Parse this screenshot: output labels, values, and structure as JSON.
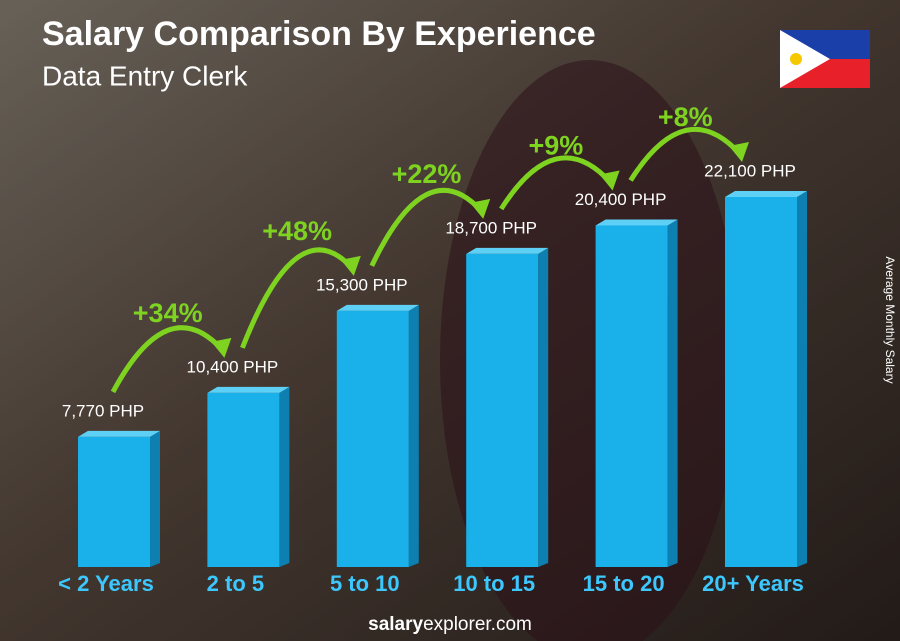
{
  "chart_data": {
    "type": "bar",
    "title": "Salary Comparison By Experience",
    "subtitle": "Data Entry Clerk",
    "categories": [
      "< 2 Years",
      "2 to 5",
      "5 to 10",
      "10 to 15",
      "15 to 20",
      "20+ Years"
    ],
    "values": [
      7770,
      10400,
      15300,
      18700,
      20400,
      22100
    ],
    "value_labels": [
      "7,770 PHP",
      "10,400 PHP",
      "15,300 PHP",
      "18,700 PHP",
      "20,400 PHP",
      "22,100 PHP"
    ],
    "increase_values": [
      34,
      48,
      22,
      9,
      8
    ],
    "increase_labels": [
      "+34%",
      "+48%",
      "+22%",
      "+9%",
      "+8%"
    ],
    "y_axis_label": "Average Monthly Salary",
    "color": "#1ab0ea",
    "footer": {
      "bold": "salary",
      "rest": "explorer.com"
    }
  }
}
